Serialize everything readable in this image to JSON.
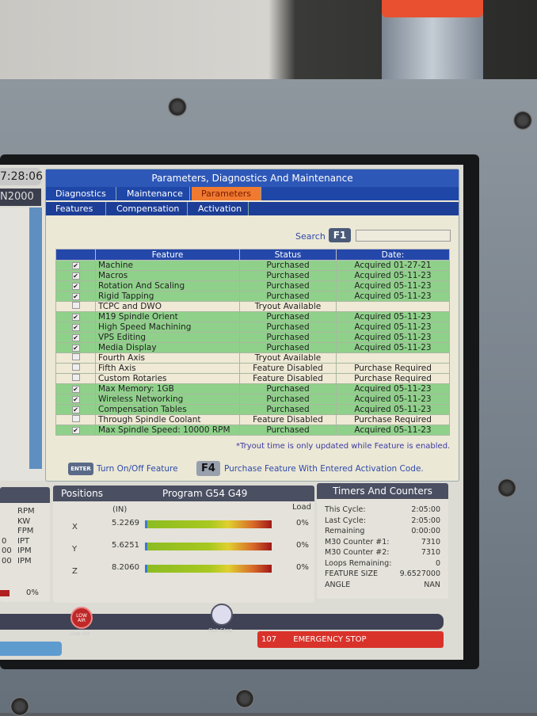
{
  "clock": "7:28:06",
  "left_panel_label": "N2000",
  "main": {
    "title": "Parameters, Diagnostics And Maintenance",
    "tabs": [
      {
        "label": "Diagnostics",
        "active": false
      },
      {
        "label": "Maintenance",
        "active": false
      },
      {
        "label": "Parameters",
        "active": true
      }
    ],
    "subtabs": [
      {
        "label": "Features",
        "active": true
      },
      {
        "label": "Compensation",
        "active": false
      },
      {
        "label": "Activation",
        "active": false
      }
    ],
    "search_label": "Search",
    "search_key": "F1",
    "search_value": "",
    "columns": [
      "Feature",
      "Status",
      "Date:"
    ],
    "rows": [
      {
        "checked": true,
        "feature": "Machine",
        "status": "Purchased",
        "date": "Acquired 01-27-21"
      },
      {
        "checked": true,
        "feature": "Macros",
        "status": "Purchased",
        "date": "Acquired 05-11-23"
      },
      {
        "checked": true,
        "feature": "Rotation And Scaling",
        "status": "Purchased",
        "date": "Acquired 05-11-23"
      },
      {
        "checked": true,
        "feature": "Rigid Tapping",
        "status": "Purchased",
        "date": "Acquired 05-11-23"
      },
      {
        "checked": false,
        "feature": "TCPC and DWO",
        "status": "Tryout Available",
        "date": ""
      },
      {
        "checked": true,
        "feature": "M19 Spindle Orient",
        "status": "Purchased",
        "date": "Acquired 05-11-23"
      },
      {
        "checked": true,
        "feature": "High Speed Machining",
        "status": "Purchased",
        "date": "Acquired 05-11-23"
      },
      {
        "checked": true,
        "feature": "VPS Editing",
        "status": "Purchased",
        "date": "Acquired 05-11-23"
      },
      {
        "checked": true,
        "feature": "Media Display",
        "status": "Purchased",
        "date": "Acquired 05-11-23"
      },
      {
        "checked": false,
        "feature": "Fourth Axis",
        "status": "Tryout Available",
        "date": ""
      },
      {
        "checked": false,
        "feature": "Fifth Axis",
        "status": "Feature Disabled",
        "date": "Purchase Required"
      },
      {
        "checked": false,
        "feature": "Custom Rotaries",
        "status": "Feature Disabled",
        "date": "Purchase Required"
      },
      {
        "checked": true,
        "feature": "Max Memory: 1GB",
        "status": "Purchased",
        "date": "Acquired 05-11-23"
      },
      {
        "checked": true,
        "feature": "Wireless Networking",
        "status": "Purchased",
        "date": "Acquired 05-11-23"
      },
      {
        "checked": true,
        "feature": "Compensation Tables",
        "status": "Purchased",
        "date": "Acquired 05-11-23"
      },
      {
        "checked": false,
        "feature": "Through Spindle Coolant",
        "status": "Feature Disabled",
        "date": "Purchase Required"
      },
      {
        "checked": true,
        "feature": "Max Spindle Speed: 10000 RPM",
        "status": "Purchased",
        "date": "Acquired 05-11-23"
      }
    ],
    "note": "*Tryout time is only updated while Feature is enabled.",
    "enter_key": "ENTER",
    "enter_hint": "Turn On/Off Feature",
    "f4_key": "F4",
    "f4_hint": "Purchase Feature With Entered Activation Code."
  },
  "spindle_panel": {
    "units": [
      "RPM",
      "KW",
      "FPM",
      "IPT",
      "IPM",
      "IPM"
    ],
    "values": [
      "",
      "",
      "",
      "0",
      "00",
      "00"
    ],
    "load": "0%"
  },
  "positions": {
    "title": "Positions",
    "program": "Program G54 G49",
    "unit": "(IN)",
    "load_label": "Load",
    "axes": [
      {
        "axis": "X",
        "value": "5.2269",
        "load": "0%"
      },
      {
        "axis": "Y",
        "value": "5.6251",
        "load": "0%"
      },
      {
        "axis": "Z",
        "value": "8.2060",
        "load": "0%"
      }
    ]
  },
  "timers": {
    "title": "Timers And Counters",
    "items": [
      {
        "label": "This Cycle:",
        "value": "2:05:00"
      },
      {
        "label": "Last Cycle:",
        "value": "2:05:00"
      },
      {
        "label": "Remaining",
        "value": "0:00:00"
      },
      {
        "label": "M30 Counter #1:",
        "value": "7310"
      },
      {
        "label": "M30 Counter #2:",
        "value": "7310"
      },
      {
        "label": "Loops Remaining:",
        "value": "0"
      },
      {
        "label": "FEATURE SIZE",
        "value": "9.6527000"
      },
      {
        "label": "ANGLE",
        "value": "NAN"
      }
    ]
  },
  "status_bar": {
    "low_air_icon_text": "LOW AIR",
    "low_air_label": "Low Air",
    "opt_stop_label": "Opt Stop"
  },
  "alarm": {
    "code": "107",
    "message": "EMERGENCY STOP"
  },
  "colors": {
    "accent_tab": "#f07a30",
    "title_blue": "#2e58b8",
    "purchased_row": "#8fd18a",
    "alarm_red": "#d8322a"
  }
}
